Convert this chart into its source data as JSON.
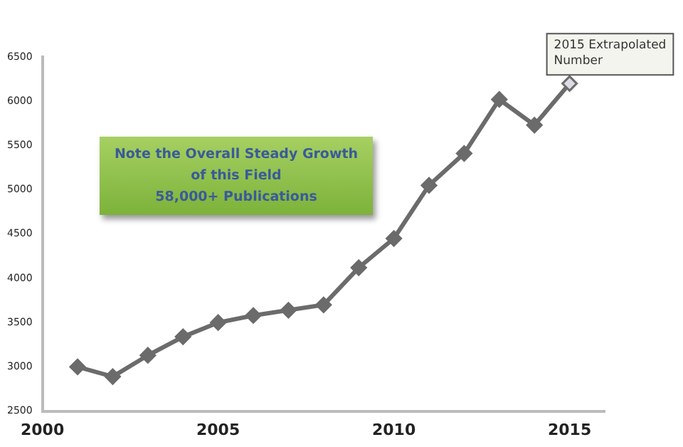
{
  "chart_data": {
    "type": "line",
    "x": [
      2001,
      2002,
      2003,
      2004,
      2005,
      2006,
      2007,
      2008,
      2009,
      2010,
      2011,
      2012,
      2013,
      2014,
      2015
    ],
    "series": [
      {
        "color": "#6b6b6b",
        "values": [
          3000,
          2890,
          3130,
          3340,
          3500,
          3580,
          3640,
          3700,
          4120,
          4450,
          5050,
          5410,
          6020,
          5730,
          6200
        ],
        "colors": [
          "#6b6b6b",
          "#6b6b6b",
          "#6b6b6b",
          "#6b6b6b",
          "#6b6b6b",
          "#6b6b6b",
          "#6b6b6b",
          "#6b6b6b",
          "#6b6b6b",
          "#6b6b6b",
          "#6b6b6b",
          "#6b6b6b",
          "#6b6b6b",
          "#6b6b6b",
          "#dcdce6"
        ]
      }
    ],
    "xlim": [
      2000,
      2016
    ],
    "xticks": [
      2000,
      2005,
      2010,
      2015
    ],
    "ylim": [
      2500,
      6500
    ],
    "yticks": [
      2500,
      3000,
      3500,
      4000,
      4500,
      5000,
      5500,
      6000,
      6500
    ],
    "grid": false,
    "legend": false,
    "marker": "diamond",
    "line_style": "solid",
    "annotations": [
      "Note the Overall Steady Growth\nof this Field\n58,000+ Publications",
      {
        "text": "2015 Extrapolated\nNumber",
        "x": 2015,
        "y": 6200
      }
    ]
  }
}
